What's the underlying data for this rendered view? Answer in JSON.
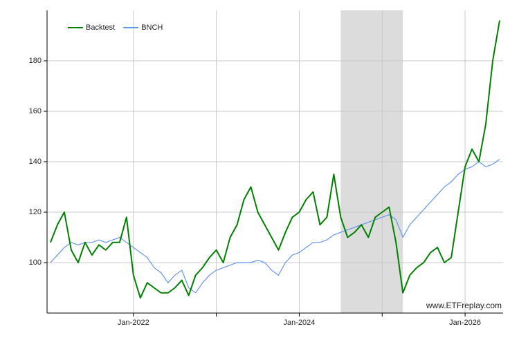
{
  "chart_data": {
    "type": "line",
    "x": [
      "2021-01",
      "2021-02",
      "2021-03",
      "2021-04",
      "2021-05",
      "2021-06",
      "2021-07",
      "2021-08",
      "2021-09",
      "2021-10",
      "2021-11",
      "2021-12",
      "2022-01",
      "2022-02",
      "2022-03",
      "2022-04",
      "2022-05",
      "2022-06",
      "2022-07",
      "2022-08",
      "2022-09",
      "2022-10",
      "2022-11",
      "2022-12",
      "2023-01",
      "2023-02",
      "2023-03",
      "2023-04",
      "2023-05",
      "2023-06",
      "2023-07",
      "2023-08",
      "2023-09",
      "2023-10",
      "2023-11",
      "2023-12",
      "2024-01",
      "2024-02",
      "2024-03",
      "2024-04",
      "2024-05",
      "2024-06",
      "2024-07",
      "2024-08",
      "2024-09",
      "2024-10",
      "2024-11",
      "2024-12",
      "2025-01",
      "2025-02",
      "2025-03",
      "2025-04",
      "2025-05",
      "2025-06",
      "2025-07",
      "2025-08",
      "2025-09",
      "2025-10",
      "2025-11",
      "2025-12",
      "2026-01",
      "2026-02",
      "2026-03",
      "2026-04",
      "2026-05",
      "2026-06"
    ],
    "series": [
      {
        "name": "Backtest",
        "color": "#008000",
        "values": [
          108,
          115,
          120,
          105,
          100,
          108,
          103,
          107,
          105,
          108,
          108,
          118,
          95,
          86,
          92,
          90,
          88,
          88,
          90,
          93,
          87,
          95,
          98,
          102,
          105,
          100,
          110,
          115,
          125,
          130,
          120,
          115,
          110,
          105,
          112,
          118,
          120,
          125,
          128,
          115,
          118,
          135,
          118,
          110,
          112,
          115,
          110,
          118,
          120,
          122,
          108,
          88,
          95,
          98,
          100,
          104,
          106,
          100,
          102,
          120,
          138,
          145,
          140,
          155,
          180,
          196
        ]
      },
      {
        "name": "BNCH",
        "color": "#6495ed",
        "values": [
          100,
          103,
          106,
          108,
          107,
          108,
          108,
          109,
          108,
          109,
          110,
          108,
          106,
          104,
          102,
          98,
          96,
          92,
          95,
          97,
          90,
          88,
          92,
          95,
          97,
          98,
          99,
          100,
          100,
          100,
          101,
          100,
          97,
          95,
          100,
          103,
          104,
          106,
          108,
          108,
          109,
          111,
          112,
          113,
          114,
          115,
          116,
          117,
          118,
          119,
          117,
          110,
          115,
          118,
          121,
          124,
          127,
          130,
          132,
          135,
          137,
          138,
          140,
          138,
          139,
          141
        ]
      }
    ],
    "xlim": [
      "2021-01",
      "2026-06"
    ],
    "xticks": [
      {
        "value": "2022-01",
        "label": "Jan-2022"
      },
      {
        "value": "2023-01",
        "label": null
      },
      {
        "value": "2024-01",
        "label": "Jan-2024"
      },
      {
        "value": "2025-01",
        "label": null
      },
      {
        "value": "2026-01",
        "label": "Jan-2026"
      }
    ],
    "ylim": [
      80,
      200
    ],
    "yticks": [
      100,
      120,
      140,
      160,
      180
    ],
    "shaded_range": [
      "2024-07",
      "2025-04"
    ],
    "grid": true,
    "legend": "top-left",
    "annotation": "www.ETFreplay.com"
  }
}
